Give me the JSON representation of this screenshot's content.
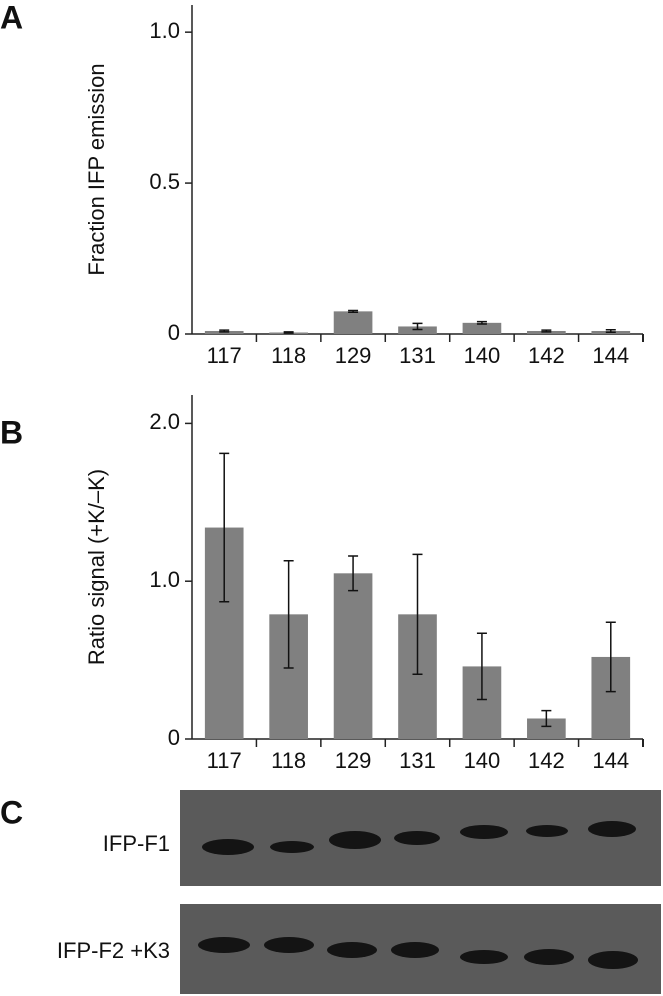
{
  "panel_labels": [
    "A",
    "B",
    "C"
  ],
  "chart_data": [
    {
      "type": "bar",
      "ylabel": "Fraction IFP emission",
      "categories": [
        "117",
        "118",
        "129",
        "131",
        "140",
        "142",
        "144"
      ],
      "values": [
        0.01,
        0.005,
        0.075,
        0.025,
        0.037,
        0.01,
        0.01
      ],
      "errors": [
        0.003,
        0.002,
        0.003,
        0.01,
        0.004,
        0.003,
        0.004
      ],
      "color": "#808080",
      "ylim": [
        0,
        1.09
      ],
      "yticks": [
        0,
        0.5,
        {
          "value": 1,
          "label": "1.0"
        }
      ]
    },
    {
      "type": "bar",
      "ylabel": "Ratio signal (+K/–K)",
      "categories": [
        "117",
        "118",
        "129",
        "131",
        "140",
        "142",
        "144"
      ],
      "values": [
        1.34,
        0.79,
        1.05,
        0.79,
        0.46,
        0.13,
        0.52
      ],
      "errors": [
        0.47,
        0.34,
        0.11,
        0.38,
        0.21,
        0.05,
        0.22
      ],
      "color": "#808080",
      "ylim": [
        0,
        2.18
      ],
      "yticks": [
        0,
        {
          "value": 1,
          "label": "1.0"
        },
        {
          "value": 2,
          "label": "2.0"
        }
      ]
    }
  ],
  "blot": {
    "rows": [
      "IFP-F1",
      "IFP-F2 +K3"
    ]
  }
}
